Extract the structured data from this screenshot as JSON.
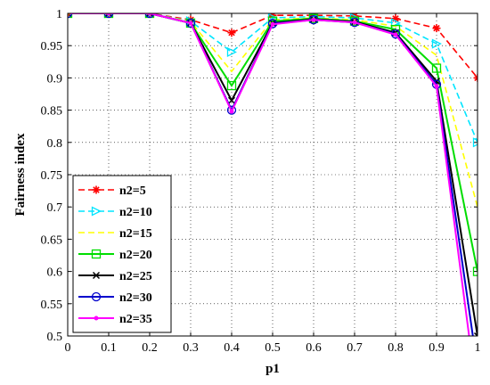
{
  "chart_data": {
    "type": "line",
    "title": "",
    "xlabel": "p1",
    "ylabel": "Fairness index",
    "xlim": [
      0,
      1
    ],
    "ylim": [
      0.5,
      1
    ],
    "x_ticks": [
      "0",
      "0.1",
      "0.2",
      "0.3",
      "0.4",
      "0.5",
      "0.6",
      "0.7",
      "0.8",
      "0.9",
      "1"
    ],
    "y_ticks": [
      "0.5",
      "0.55",
      "0.6",
      "0.65",
      "0.7",
      "0.75",
      "0.8",
      "0.85",
      "0.9",
      "0.95",
      "1"
    ],
    "grid": true,
    "legend_position": "bottom-left",
    "x": [
      0,
      0.1,
      0.2,
      0.3,
      0.4,
      0.5,
      0.6,
      0.7,
      0.8,
      0.9,
      1
    ],
    "series": [
      {
        "name": "n2=5",
        "color": "#ff0000",
        "dash": "dash",
        "marker": "star",
        "values": [
          1,
          1,
          1,
          0.99,
          0.97,
          0.997,
          0.997,
          0.996,
          0.992,
          0.977,
          0.9
        ]
      },
      {
        "name": "n2=10",
        "color": "#00e5ff",
        "dash": "dash",
        "marker": "triangle",
        "values": [
          1,
          1,
          1,
          0.988,
          0.94,
          0.993,
          0.995,
          0.993,
          0.985,
          0.953,
          0.8
        ]
      },
      {
        "name": "n2=15",
        "color": "#ffff00",
        "dash": "dash",
        "marker": "none",
        "values": [
          1,
          1,
          1,
          0.987,
          0.91,
          0.99,
          0.993,
          0.99,
          0.98,
          0.935,
          0.7
        ]
      },
      {
        "name": "n2=20",
        "color": "#00dd00",
        "dash": "solid",
        "marker": "square",
        "values": [
          1,
          1,
          1,
          0.985,
          0.888,
          0.988,
          0.992,
          0.988,
          0.975,
          0.915,
          0.6
        ]
      },
      {
        "name": "n2=25",
        "color": "#000000",
        "dash": "solid",
        "marker": "x",
        "values": [
          1,
          1,
          1,
          0.985,
          0.865,
          0.985,
          0.991,
          0.987,
          0.97,
          0.895,
          0.5
        ]
      },
      {
        "name": "n2=30",
        "color": "#0000cc",
        "dash": "solid",
        "marker": "circle",
        "values": [
          1,
          1,
          1,
          0.985,
          0.85,
          0.984,
          0.99,
          0.986,
          0.968,
          0.89,
          0.45
        ]
      },
      {
        "name": "n2=35",
        "color": "#ff00ff",
        "dash": "solid",
        "marker": "dot",
        "values": [
          1,
          1,
          1,
          0.985,
          0.848,
          0.983,
          0.99,
          0.986,
          0.967,
          0.887,
          0.4
        ]
      }
    ]
  }
}
